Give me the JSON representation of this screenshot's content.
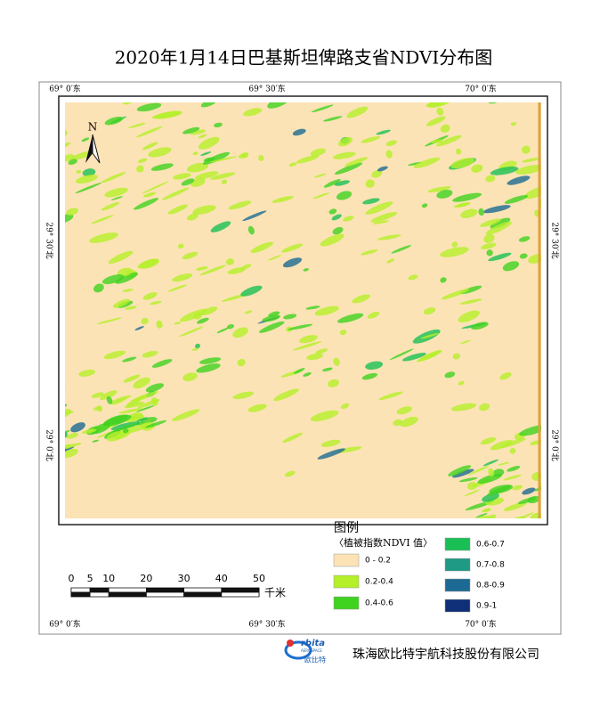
{
  "title": "2020年1月14日巴基斯坦俾路支省NDVI分布图",
  "coordinates": {
    "top": [
      "69° 0′东",
      "69° 30′东",
      "70° 0′东"
    ],
    "bottom": [
      "69° 0′东",
      "69° 30′东",
      "70° 0′东"
    ],
    "left": [
      "29° 30′北",
      "29° 0′北"
    ],
    "right": [
      "29° 30′北",
      "29° 0′北"
    ]
  },
  "north_arrow": "N",
  "legend": {
    "title": "图例",
    "subtitle": "〈植被指数NDVI 值〉",
    "items": [
      {
        "label": "0 - 0.2",
        "color": "#fce3b5"
      },
      {
        "label": "0.2-0.4",
        "color": "#b5ef2a"
      },
      {
        "label": "0.4-0.6",
        "color": "#3fd21f"
      },
      {
        "label": "0.6-0.7",
        "color": "#19bf55"
      },
      {
        "label": "0.7-0.8",
        "color": "#1e9a85"
      },
      {
        "label": "0.8-0.9",
        "color": "#1c6a93"
      },
      {
        "label": "0.9-1",
        "color": "#0f2f78"
      }
    ]
  },
  "scale_bar": {
    "ticks": [
      0,
      5,
      10,
      20,
      30,
      40,
      50
    ],
    "unit": "千米"
  },
  "logo": {
    "text": "rbita",
    "subtext": "AEROSPACE",
    "name": "欧比特"
  },
  "company": "珠海欧比特宇航科技股份有限公司"
}
